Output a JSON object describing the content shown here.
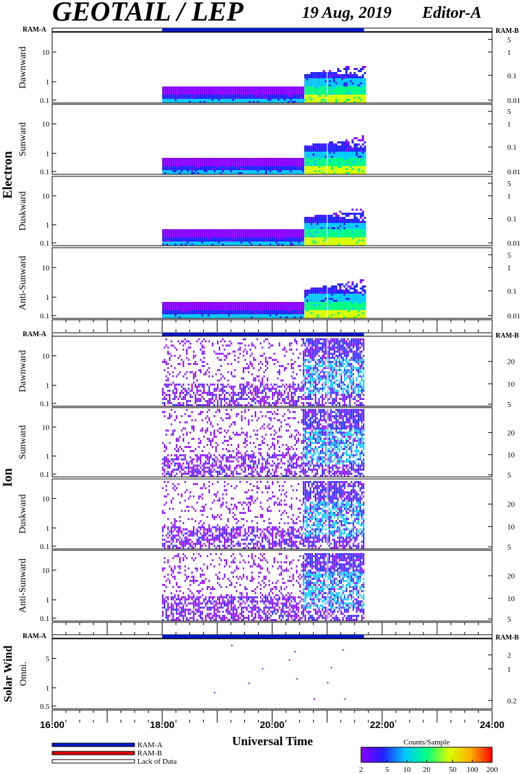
{
  "header": {
    "title": "GEOTAIL / LEP",
    "date": "19 Aug, 2019",
    "editor": "Editor-A"
  },
  "chart_data": {
    "type": "heatmap",
    "xlabel": "Universal Time",
    "x_ticks": [
      "16:00",
      "18:00",
      "20:00",
      "22:00",
      "24:00"
    ],
    "x_range_hours": [
      16,
      24
    ],
    "data_coverage_hours": [
      18.0,
      21.67
    ],
    "ram_a_label": "RAM-A",
    "ram_b_label": "RAM-B",
    "groups": [
      {
        "name": "Electron",
        "panels": [
          {
            "label": "Dawnward",
            "left_ticks": [
              "10",
              "1",
              "0.1"
            ],
            "right_ticks": [
              "5",
              "1",
              "0.1",
              "0.01"
            ]
          },
          {
            "label": "Sunward",
            "left_ticks": [
              "10",
              "1",
              "0.1"
            ],
            "right_ticks": [
              "5",
              "1",
              "0.1",
              "0.01"
            ]
          },
          {
            "label": "Duskward",
            "left_ticks": [
              "10",
              "1",
              "0.1"
            ],
            "right_ticks": [
              "5",
              "1",
              "0.1",
              "0.01"
            ]
          },
          {
            "label": "Anti-Sunward",
            "left_ticks": [
              "10",
              "1",
              "0.1"
            ],
            "right_ticks": [
              "5",
              "1",
              "0.1",
              "0.01"
            ]
          }
        ]
      },
      {
        "name": "Ion",
        "panels": [
          {
            "label": "Dawnward",
            "left_ticks": [
              "10",
              "1",
              "0.1"
            ],
            "right_ticks": [
              "20",
              "10",
              "5"
            ]
          },
          {
            "label": "Sunward",
            "left_ticks": [
              "10",
              "1",
              "0.1"
            ],
            "right_ticks": [
              "20",
              "10",
              "5"
            ]
          },
          {
            "label": "Duskward",
            "left_ticks": [
              "10",
              "1",
              "0.1"
            ],
            "right_ticks": [
              "20",
              "10",
              "5"
            ]
          },
          {
            "label": "Anti-Sunward",
            "left_ticks": [
              "10",
              "1",
              "0.1"
            ],
            "right_ticks": [
              "20",
              "10",
              "5"
            ]
          }
        ]
      },
      {
        "name": "Solar Wind",
        "panels": [
          {
            "label": "Omni.",
            "left_ticks": [
              "5",
              "1",
              "0.5"
            ],
            "right_ticks": [
              "2",
              "1",
              "0.2"
            ]
          }
        ]
      }
    ],
    "legend": [
      {
        "label": "RAM-A",
        "color": "#0018c8"
      },
      {
        "label": "RAM-B",
        "color": "#e00000"
      },
      {
        "label": "Lack of Data",
        "color": "#ffffff"
      }
    ],
    "colorbar": {
      "title": "Counts/Sample",
      "ticks": [
        "2",
        "5",
        "10",
        "20",
        "50",
        "100",
        "200"
      ],
      "colors": [
        "#8800ff",
        "#2020ff",
        "#00c8ff",
        "#00ff80",
        "#d8ff00",
        "#ffb000",
        "#ff0000"
      ]
    }
  }
}
